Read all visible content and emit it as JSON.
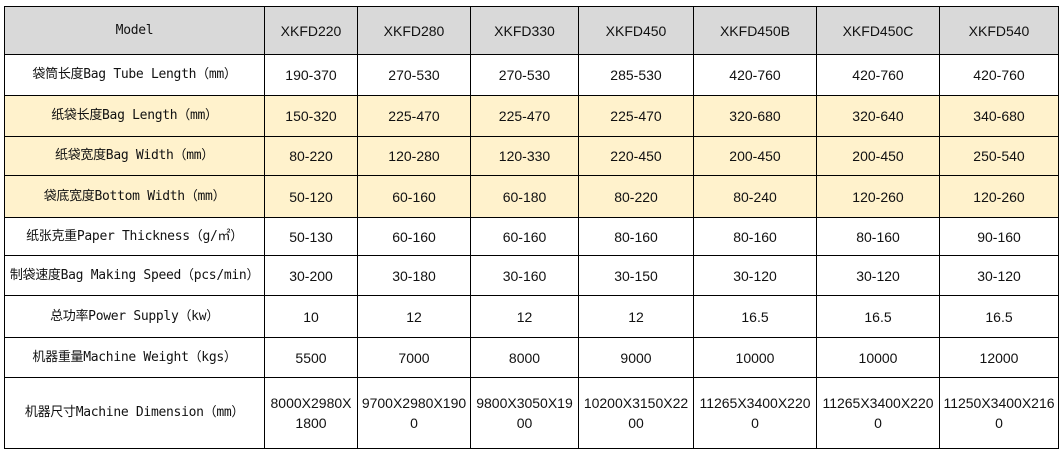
{
  "table": {
    "header_label": "Model",
    "models": [
      "XKFD220",
      "XKFD280",
      "XKFD330",
      "XKFD450",
      "XKFD450B",
      "XKFD450C",
      "XKFD540"
    ],
    "colors": {
      "header_bg": "#d9d9d9",
      "highlight_bg": "#fff2cc",
      "border": "#000000"
    },
    "rows": [
      {
        "label": "袋筒长度Bag Tube Length（mm）",
        "highlight": false,
        "values": [
          "190-370",
          "270-530",
          "270-530",
          "285-530",
          "420-760",
          "420-760",
          "420-760"
        ]
      },
      {
        "label": "纸袋长度Bag Length（mm）",
        "highlight": true,
        "values": [
          "150-320",
          "225-470",
          "225-470",
          "225-470",
          "320-680",
          "320-640",
          "340-680"
        ]
      },
      {
        "label": "纸袋宽度Bag Width（mm）",
        "highlight": true,
        "values": [
          "80-220",
          "120-280",
          "120-330",
          "220-450",
          "200-450",
          "200-450",
          "250-540"
        ]
      },
      {
        "label": "袋底宽度Bottom Width（mm）",
        "highlight": true,
        "values": [
          "50-120",
          "60-160",
          "60-180",
          "80-220",
          "80-240",
          "120-260",
          "120-260"
        ]
      },
      {
        "label": "纸张克重Paper Thickness（g/㎡）",
        "highlight": false,
        "values": [
          "50-130",
          "60-160",
          "60-160",
          "80-160",
          "80-160",
          "80-160",
          "90-160"
        ]
      },
      {
        "label": "制袋速度Bag Making Speed（pcs/min）",
        "highlight": false,
        "values": [
          "30-200",
          "30-180",
          "30-160",
          "30-150",
          "30-120",
          "30-120",
          "30-120"
        ]
      },
      {
        "label": "总功率Power Supply（kw）",
        "highlight": false,
        "values": [
          "10",
          "12",
          "12",
          "12",
          "16.5",
          "16.5",
          "16.5"
        ]
      },
      {
        "label": "机器重量Machine Weight（kgs）",
        "highlight": false,
        "values": [
          "5500",
          "7000",
          "8000",
          "9000",
          "10000",
          "10000",
          "12000"
        ]
      },
      {
        "label": "机器尺寸Machine Dimension（mm）",
        "highlight": false,
        "values": [
          "8000X2980X1800",
          "9700X2980X1900",
          "9800X3050X1900",
          "10200X3150X2200",
          "11265X3400X2200",
          "11265X3400X2200",
          "11250X3400X2160"
        ]
      }
    ]
  }
}
